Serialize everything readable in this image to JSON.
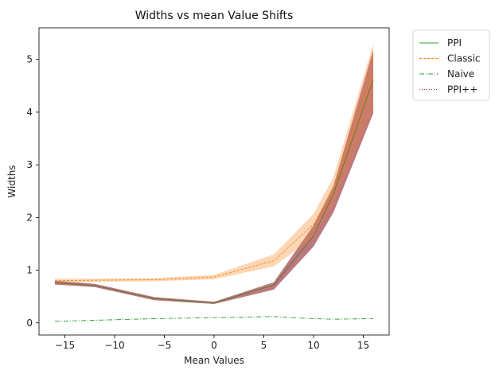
{
  "chart_data": {
    "type": "line",
    "title": "Widths vs mean Value Shifts",
    "xlabel": "Mean Values",
    "ylabel": "Widths",
    "xlim": [
      -17.6,
      17.6
    ],
    "ylim": [
      -0.23,
      5.6
    ],
    "xticks": [
      -15,
      -10,
      -5,
      0,
      5,
      10,
      15
    ],
    "xtick_labels": [
      "−15",
      "−10",
      "−5",
      "0",
      "5",
      "10",
      "15"
    ],
    "yticks": [
      0,
      1,
      2,
      3,
      4,
      5
    ],
    "ytick_labels": [
      "0",
      "1",
      "2",
      "3",
      "4",
      "5"
    ],
    "grid": false,
    "legend_position": "outside-top-right",
    "x": [
      -16,
      -12,
      -6,
      0,
      6,
      10,
      12,
      16
    ],
    "series": [
      {
        "name": "PPI",
        "color": "#2ca02c",
        "dash": "",
        "values": [
          0.76,
          0.71,
          0.46,
          0.38,
          0.72,
          1.65,
          2.45,
          4.62
        ],
        "band_low": [
          0.73,
          0.68,
          0.43,
          0.36,
          0.63,
          1.45,
          2.1,
          3.98
        ],
        "band_high": [
          0.8,
          0.74,
          0.49,
          0.4,
          0.77,
          1.85,
          2.6,
          5.18
        ],
        "band_color": "#7b3f7a",
        "band_opacity": 0.55
      },
      {
        "name": "Classic",
        "color": "#ff7f0e",
        "dash": "3,2",
        "values": [
          0.8,
          0.81,
          0.82,
          0.87,
          1.18,
          1.87,
          2.55,
          4.7
        ],
        "band_low": [
          0.76,
          0.78,
          0.79,
          0.83,
          1.07,
          1.62,
          2.25,
          4.05
        ],
        "band_high": [
          0.84,
          0.84,
          0.85,
          0.91,
          1.3,
          2.07,
          2.77,
          5.3
        ],
        "band_color": "#f7a75a",
        "band_opacity": 0.45
      },
      {
        "name": "Naive",
        "color": "#2ca02c",
        "dash": "6,2,1,2",
        "values": [
          0.03,
          0.05,
          0.08,
          0.1,
          0.12,
          0.08,
          0.07,
          0.08
        ]
      },
      {
        "name": "PPI++",
        "color": "#d62728",
        "dash": "1,2",
        "values": [
          0.76,
          0.71,
          0.46,
          0.38,
          0.72,
          1.65,
          2.45,
          4.62
        ],
        "band_low": [
          0.73,
          0.68,
          0.43,
          0.36,
          0.63,
          1.45,
          2.1,
          3.98
        ],
        "band_high": [
          0.8,
          0.74,
          0.49,
          0.4,
          0.77,
          1.85,
          2.6,
          5.18
        ],
        "band_color": "#c1553b",
        "band_opacity": 0.45
      }
    ]
  }
}
